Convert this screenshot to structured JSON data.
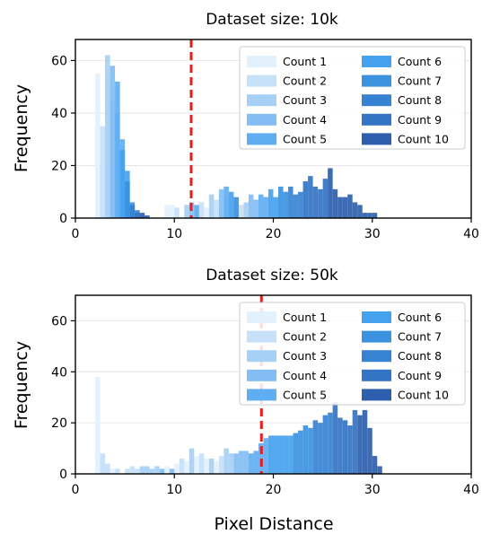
{
  "chart_data": [
    {
      "type": "bar",
      "title": "Dataset size: 10k",
      "xlabel": "",
      "ylabel": "Frequency",
      "xlim": [
        0,
        40
      ],
      "ylim": [
        0,
        68
      ],
      "xticks": [
        0,
        10,
        20,
        30,
        40
      ],
      "yticks": [
        0,
        20,
        40,
        60
      ],
      "threshold_x": 11.7,
      "grid": true,
      "legend_position": "top-right",
      "legend_columns": 2,
      "bin_width": 0.5,
      "series": [
        {
          "name": "Count 1",
          "color": "#e3f1fc",
          "bins": [
            [
              2,
              2.5,
              55
            ],
            [
              2.5,
              3,
              20
            ],
            [
              9,
              9.5,
              5
            ],
            [
              9.5,
              10,
              5
            ],
            [
              12,
              12.5,
              5
            ],
            [
              13,
              13.5,
              4
            ],
            [
              14,
              14.5,
              3
            ],
            [
              15,
              15.5,
              3
            ],
            [
              16,
              16.5,
              2
            ]
          ]
        },
        {
          "name": "Count 2",
          "color": "#c6e1f8",
          "bins": [
            [
              2.5,
              3,
              35
            ],
            [
              3,
              3.5,
              52
            ],
            [
              10,
              10.5,
              4
            ],
            [
              12.5,
              13,
              6
            ],
            [
              14,
              14.5,
              7
            ],
            [
              16,
              16.5,
              6
            ],
            [
              16.5,
              17,
              5
            ]
          ]
        },
        {
          "name": "Count 3",
          "color": "#a6d0f6",
          "bins": [
            [
              3,
              3.5,
              62
            ],
            [
              3.5,
              4,
              45
            ],
            [
              11,
              11.5,
              5
            ],
            [
              13.5,
              14,
              9
            ],
            [
              15,
              15.5,
              8
            ],
            [
              17,
              17.5,
              6
            ]
          ]
        },
        {
          "name": "Count 4",
          "color": "#83bdf3",
          "bins": [
            [
              3.5,
              4,
              58
            ],
            [
              4,
              4.5,
              40
            ],
            [
              11.5,
              12,
              6
            ],
            [
              14.5,
              15,
              11
            ],
            [
              17.5,
              18,
              9
            ],
            [
              18,
              18.5,
              7
            ]
          ]
        },
        {
          "name": "Count 5",
          "color": "#5faef2",
          "bins": [
            [
              4,
              4.5,
              52
            ],
            [
              4.5,
              5,
              30
            ],
            [
              12,
              12.5,
              5
            ],
            [
              15,
              15.5,
              12
            ],
            [
              18.5,
              19,
              9
            ],
            [
              19,
              19.5,
              8
            ]
          ]
        },
        {
          "name": "Count 6",
          "color": "#45a2ee",
          "bins": [
            [
              4.5,
              5,
              26
            ],
            [
              5,
              5.5,
              18
            ],
            [
              15.5,
              16,
              10
            ],
            [
              19.5,
              20,
              11
            ],
            [
              20,
              20.5,
              8
            ]
          ]
        },
        {
          "name": "Count 7",
          "color": "#3b93e0",
          "bins": [
            [
              5,
              5.5,
              14
            ],
            [
              5.5,
              6,
              6
            ],
            [
              16,
              16.5,
              8
            ],
            [
              20.5,
              21,
              12
            ],
            [
              21,
              21.5,
              10
            ]
          ]
        },
        {
          "name": "Count 8",
          "color": "#3682d3",
          "bins": [
            [
              5.5,
              6,
              5
            ],
            [
              6,
              6.5,
              3
            ],
            [
              21.5,
              22,
              12
            ],
            [
              22,
              22.5,
              9
            ],
            [
              22.5,
              23,
              10
            ]
          ]
        },
        {
          "name": "Count 9",
          "color": "#3474c4",
          "bins": [
            [
              6,
              6.5,
              2
            ],
            [
              23,
              23.5,
              14
            ],
            [
              23.5,
              24,
              16
            ],
            [
              24,
              24.5,
              12
            ],
            [
              24.5,
              25,
              11
            ],
            [
              25,
              25.5,
              15
            ]
          ]
        },
        {
          "name": "Count 10",
          "color": "#2d5fae",
          "bins": [
            [
              6.5,
              7,
              2
            ],
            [
              7,
              7.5,
              1
            ],
            [
              25.5,
              26,
              19
            ],
            [
              26,
              26.5,
              11
            ],
            [
              26.5,
              27,
              8
            ],
            [
              27,
              27.5,
              8
            ],
            [
              27.5,
              28,
              9
            ],
            [
              28,
              28.5,
              6
            ],
            [
              28.5,
              29,
              5
            ],
            [
              29,
              29.5,
              2
            ],
            [
              29.5,
              30,
              2
            ],
            [
              30,
              30.5,
              2
            ]
          ]
        }
      ]
    },
    {
      "type": "bar",
      "title": "Dataset size: 50k",
      "xlabel": "Pixel Distance",
      "ylabel": "Frequency",
      "xlim": [
        0,
        40
      ],
      "ylim": [
        0,
        70
      ],
      "xticks": [
        0,
        10,
        20,
        30,
        40
      ],
      "yticks": [
        0,
        20,
        40,
        60
      ],
      "threshold_x": 18.8,
      "grid": true,
      "legend_position": "top-right",
      "legend_columns": 2,
      "bin_width": 0.5,
      "series": [
        {
          "name": "Count 1",
          "color": "#e3f1fc",
          "bins": [
            [
              2,
              2.5,
              38
            ],
            [
              2.5,
              3,
              8
            ],
            [
              3,
              3.5,
              4
            ],
            [
              3.5,
              4,
              2
            ],
            [
              9,
              9.5,
              3
            ],
            [
              10,
              10.5,
              4
            ],
            [
              11,
              11.5,
              5
            ],
            [
              12,
              12.5,
              7
            ],
            [
              13,
              13.5,
              6
            ],
            [
              14,
              14.5,
              5
            ]
          ]
        },
        {
          "name": "Count 2",
          "color": "#c6e1f8",
          "bins": [
            [
              2.5,
              3,
              8
            ],
            [
              3,
              3.5,
              4
            ],
            [
              4,
              4.5,
              2
            ],
            [
              5,
              5.5,
              2
            ],
            [
              5.5,
              6,
              3
            ],
            [
              6,
              6.5,
              2
            ],
            [
              10.5,
              11,
              6
            ],
            [
              12.5,
              13,
              8
            ],
            [
              14.5,
              15,
              7
            ]
          ]
        },
        {
          "name": "Count 3",
          "color": "#a6d0f6",
          "bins": [
            [
              6.5,
              7,
              3
            ],
            [
              7,
              7.5,
              3
            ],
            [
              7.5,
              8,
              2
            ],
            [
              8,
              8.5,
              3
            ],
            [
              11.5,
              12,
              10
            ],
            [
              13.5,
              14,
              6
            ],
            [
              15,
              15.5,
              10
            ],
            [
              15.5,
              16,
              8
            ]
          ]
        },
        {
          "name": "Count 4",
          "color": "#83bdf3",
          "bins": [
            [
              8.5,
              9,
              2
            ],
            [
              9.5,
              10,
              2
            ],
            [
              16,
              16.5,
              8
            ],
            [
              16.5,
              17,
              9
            ],
            [
              17,
              17.5,
              9
            ]
          ]
        },
        {
          "name": "Count 5",
          "color": "#5faef2",
          "bins": [
            [
              17.5,
              18,
              8
            ],
            [
              18,
              18.5,
              9
            ],
            [
              18.5,
              19,
              12
            ],
            [
              19,
              19.5,
              14
            ]
          ]
        },
        {
          "name": "Count 6",
          "color": "#45a2ee",
          "bins": [
            [
              19.5,
              20,
              15
            ],
            [
              20,
              20.5,
              15
            ],
            [
              20.5,
              21,
              15
            ],
            [
              21,
              21.5,
              15
            ],
            [
              21.5,
              22,
              15
            ]
          ]
        },
        {
          "name": "Count 7",
          "color": "#3b93e0",
          "bins": [
            [
              22,
              22.5,
              16
            ],
            [
              22.5,
              23,
              17
            ],
            [
              23,
              23.5,
              19
            ],
            [
              23.5,
              24,
              18
            ]
          ]
        },
        {
          "name": "Count 8",
          "color": "#3682d3",
          "bins": [
            [
              24,
              24.5,
              21
            ],
            [
              24.5,
              25,
              20
            ],
            [
              25,
              25.5,
              23
            ],
            [
              25.5,
              26,
              24
            ]
          ]
        },
        {
          "name": "Count 9",
          "color": "#3474c4",
          "bins": [
            [
              26,
              26.5,
              28
            ],
            [
              26.5,
              27,
              22
            ],
            [
              27,
              27.5,
              21
            ],
            [
              27.5,
              28,
              19
            ],
            [
              28,
              28.5,
              25
            ]
          ]
        },
        {
          "name": "Count 10",
          "color": "#2d5fae",
          "bins": [
            [
              28.5,
              29,
              23
            ],
            [
              29,
              29.5,
              25
            ],
            [
              29.5,
              30,
              18
            ],
            [
              30,
              30.5,
              7
            ],
            [
              30.5,
              31,
              3
            ]
          ]
        }
      ]
    }
  ]
}
